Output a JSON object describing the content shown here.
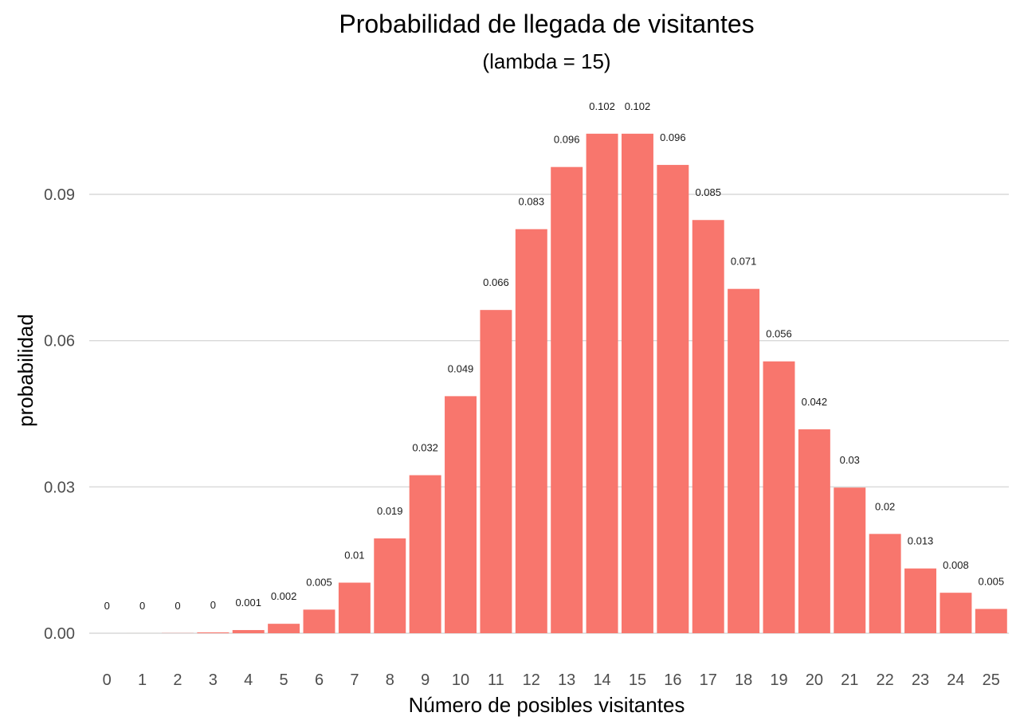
{
  "chart_data": {
    "type": "bar",
    "title": "Probabilidad de llegada de visitantes",
    "subtitle": "(lambda = 15)",
    "xlabel": "Número de posibles visitantes",
    "ylabel": "probabilidad",
    "categories": [
      "0",
      "1",
      "2",
      "3",
      "4",
      "5",
      "6",
      "7",
      "8",
      "9",
      "10",
      "11",
      "12",
      "13",
      "14",
      "15",
      "16",
      "17",
      "18",
      "19",
      "20",
      "21",
      "22",
      "23",
      "24",
      "25"
    ],
    "values": [
      3e-07,
      4.6e-06,
      3.44e-05,
      0.0001721,
      0.0006453,
      0.0019358,
      0.0048395,
      0.0103703,
      0.0194443,
      0.0324072,
      0.0486107,
      0.0662874,
      0.0828593,
      0.0956069,
      0.1024359,
      0.1024359,
      0.0960336,
      0.0847356,
      0.070613,
      0.0557471,
      0.0418103,
      0.0298645,
      0.0203622,
      0.0132797,
      0.0082998,
      0.0049799
    ],
    "data_labels": [
      "0",
      "0",
      "0",
      "0",
      "0.001",
      "0.002",
      "0.005",
      "0.01",
      "0.019",
      "0.032",
      "0.049",
      "0.066",
      "0.083",
      "0.096",
      "0.102",
      "0.102",
      "0.096",
      "0.085",
      "0.071",
      "0.056",
      "0.042",
      "0.03",
      "0.02",
      "0.013",
      "0.008",
      "0.005"
    ],
    "yticks": [
      "0.00",
      "0.03",
      "0.06",
      "0.09"
    ],
    "ytick_values": [
      0,
      0.03,
      0.06,
      0.09
    ],
    "ylim": [
      0,
      0.108
    ],
    "grid": true,
    "legend": "none",
    "colors": {
      "bar": "#F8766D",
      "grid": "#d9d9d9"
    }
  }
}
